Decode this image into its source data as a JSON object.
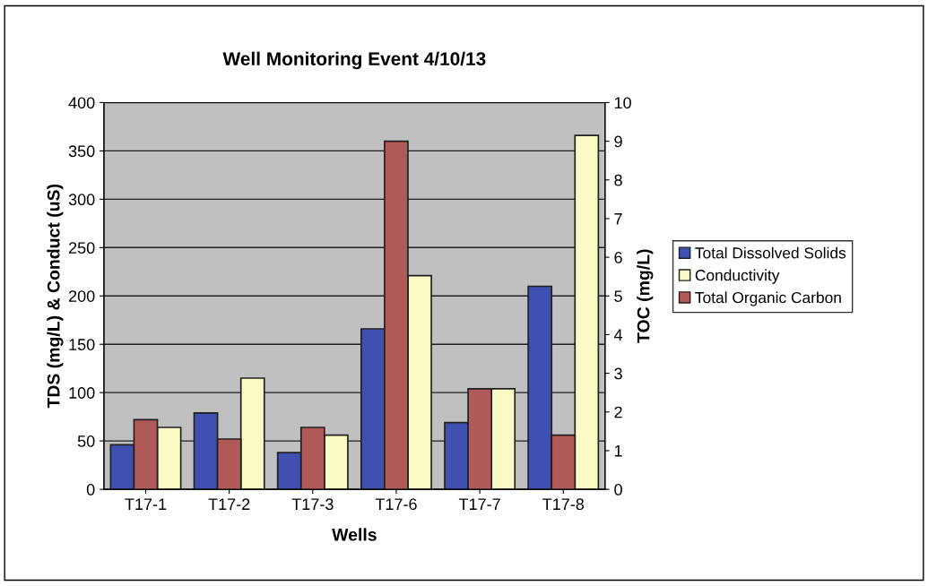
{
  "chart_data": {
    "type": "bar",
    "title": "Well Monitoring Event 4/10/13",
    "xlabel": "Wells",
    "ylabel": "TDS (mg/L) & Conduct (uS)",
    "y2label": "TOC (mg/L)",
    "categories": [
      "T17-1",
      "T17-2",
      "T17-3",
      "T17-6",
      "T17-7",
      "T17-8"
    ],
    "series": [
      {
        "name": "Total Dissolved Solids",
        "color": "#4050b0",
        "values": [
          46,
          79,
          38,
          166,
          69,
          210
        ]
      },
      {
        "name": "Conductivity",
        "color": "#fafac4",
        "values": [
          64,
          115,
          56,
          221,
          104,
          366
        ]
      },
      {
        "name": "Total Organic Carbon",
        "color": "#b05a5a",
        "axis": "y2",
        "values": [
          1.8,
          1.3,
          1.6,
          9.0,
          2.6,
          1.4
        ]
      }
    ],
    "ylim": [
      0,
      400
    ],
    "yticks": [
      0,
      50,
      100,
      150,
      200,
      250,
      300,
      350,
      400
    ],
    "y2lim": [
      0,
      10
    ],
    "y2ticks": [
      0,
      1,
      2,
      3,
      4,
      5,
      6,
      7,
      8,
      9,
      10
    ],
    "grid": "y",
    "legend": "right"
  }
}
